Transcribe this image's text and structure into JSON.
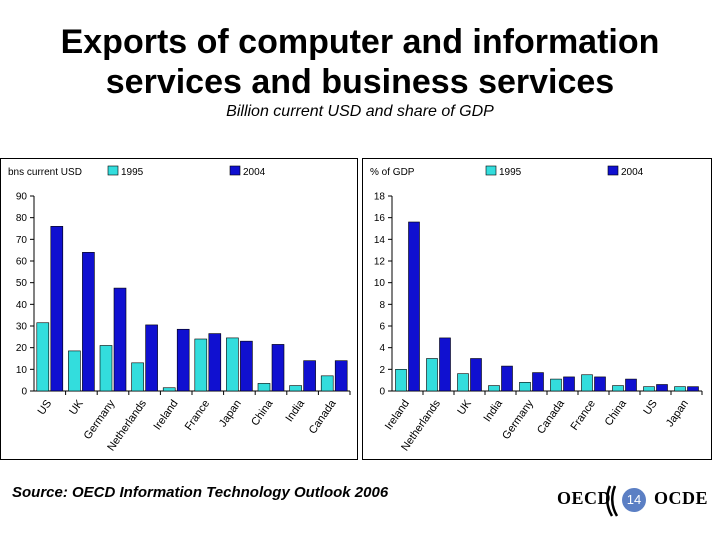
{
  "slide": {
    "title_line1": "Exports of computer and information",
    "title_line2": "services and business services",
    "subtitle": "Billion current USD and share of GDP",
    "source": "Source: OECD Information Technology Outlook 2006",
    "page_number": "14",
    "logo_left": "OECD",
    "logo_right": "OCDE"
  },
  "colors": {
    "series1995": "#33dddd",
    "series2004": "#1010d0",
    "border": "#000000",
    "axis": "#000000"
  },
  "chart_data": [
    {
      "type": "bar",
      "unit_label": "bns current USD",
      "categories": [
        "US",
        "UK",
        "Germany",
        "Netherlands",
        "Ireland",
        "France",
        "Japan",
        "China",
        "India",
        "Canada"
      ],
      "series": [
        {
          "name": "1995",
          "values": [
            31.5,
            18.5,
            21,
            13,
            1.5,
            24,
            24.5,
            3.5,
            2.5,
            7
          ]
        },
        {
          "name": "2004",
          "values": [
            76,
            64,
            47.5,
            30.5,
            28.5,
            26.5,
            23,
            21.5,
            14,
            14
          ]
        }
      ],
      "ylim": [
        0,
        90
      ],
      "yticks": [
        0,
        10,
        20,
        30,
        40,
        50,
        60,
        70,
        80,
        90
      ],
      "legend_position": "top"
    },
    {
      "type": "bar",
      "unit_label": "% of GDP",
      "categories": [
        "Ireland",
        "Netherlands",
        "UK",
        "India",
        "Germany",
        "Canada",
        "France",
        "China",
        "US",
        "Japan"
      ],
      "series": [
        {
          "name": "1995",
          "values": [
            2.0,
            3.0,
            1.6,
            0.5,
            0.8,
            1.1,
            1.5,
            0.5,
            0.4,
            0.4
          ]
        },
        {
          "name": "2004",
          "values": [
            15.6,
            4.9,
            3.0,
            2.3,
            1.7,
            1.3,
            1.3,
            1.1,
            0.6,
            0.4
          ]
        }
      ],
      "ylim": [
        0,
        18
      ],
      "yticks": [
        0,
        2,
        4,
        6,
        8,
        10,
        12,
        14,
        16,
        18
      ],
      "legend_position": "top"
    }
  ]
}
